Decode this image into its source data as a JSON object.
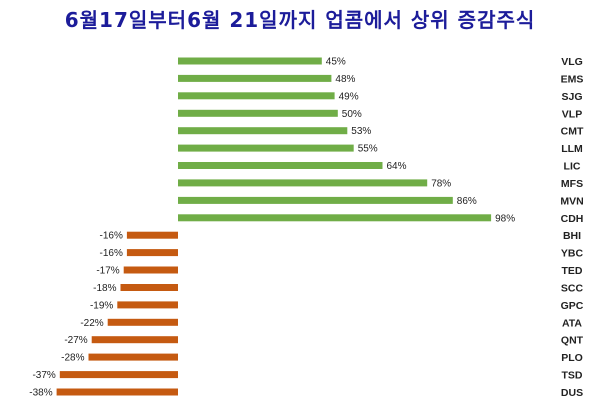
{
  "chart_data": {
    "type": "bar",
    "orientation": "horizontal",
    "title": "6월17일부터6월 21일까지 업콤에서 상위 증감주식",
    "xlabel": "",
    "ylabel": "",
    "categories": [
      "VLG",
      "EMS",
      "SJG",
      "VLP",
      "CMT",
      "LLM",
      "LIC",
      "MFS",
      "MVN",
      "CDH",
      "BHI",
      "YBC",
      "TED",
      "SCC",
      "GPC",
      "ATA",
      "QNT",
      "PLO",
      "TSD",
      "DUS"
    ],
    "values": [
      45,
      48,
      49,
      50,
      53,
      55,
      64,
      78,
      86,
      98,
      -16,
      -16,
      -17,
      -18,
      -19,
      -22,
      -27,
      -28,
      -37,
      -38
    ],
    "value_suffix": "%",
    "xlim": [
      -40,
      100
    ],
    "grid": false,
    "legend": "none",
    "colors": {
      "positive": "#70ad47",
      "negative": "#c55a11",
      "title": "#1c1c9a"
    }
  }
}
